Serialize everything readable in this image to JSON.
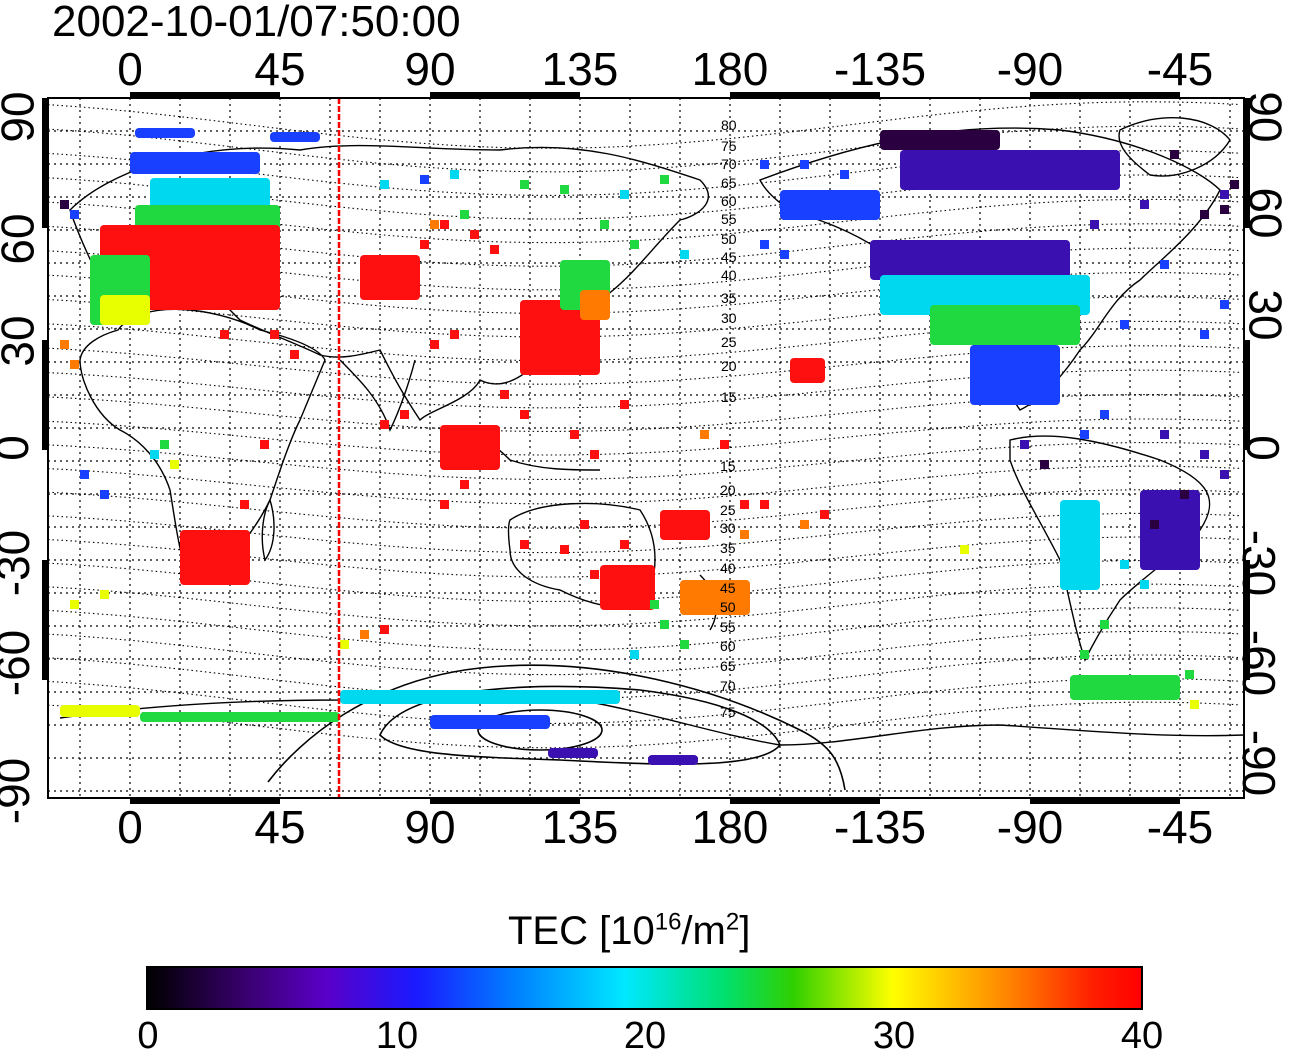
{
  "title": "2002-10-01/07:50:00",
  "lon_labels": [
    "0",
    "45",
    "90",
    "135",
    "180",
    "-135",
    "-90",
    "-45"
  ],
  "lat_labels": [
    "90",
    "60",
    "30",
    "0",
    "-30",
    "-60",
    "-90"
  ],
  "magnetic_lat_labels_north": [
    "80",
    "75",
    "70",
    "65",
    "60",
    "55",
    "50",
    "45",
    "40",
    "35",
    "30",
    "25",
    "20",
    "15"
  ],
  "magnetic_lat_labels_south": [
    "15",
    "20",
    "25",
    "30",
    "35",
    "40",
    "45",
    "50",
    "55",
    "60",
    "65",
    "70",
    "75"
  ],
  "colorbar": {
    "title_main": "TEC  [10",
    "title_exp1": "16",
    "title_mid": "/m",
    "title_exp2": "2",
    "title_end": "]",
    "ticks": [
      "0",
      "10",
      "20",
      "30",
      "40"
    ],
    "range": [
      0,
      40
    ]
  },
  "colors": {
    "red": "#ff1010",
    "orange": "#ff7a00",
    "yellow": "#e8ff00",
    "green": "#20d840",
    "cyan": "#00d8f0",
    "blue": "#1a40ff",
    "indigo": "#3a10b0",
    "dark": "#2a0040",
    "terminator": "#ff0000"
  }
}
